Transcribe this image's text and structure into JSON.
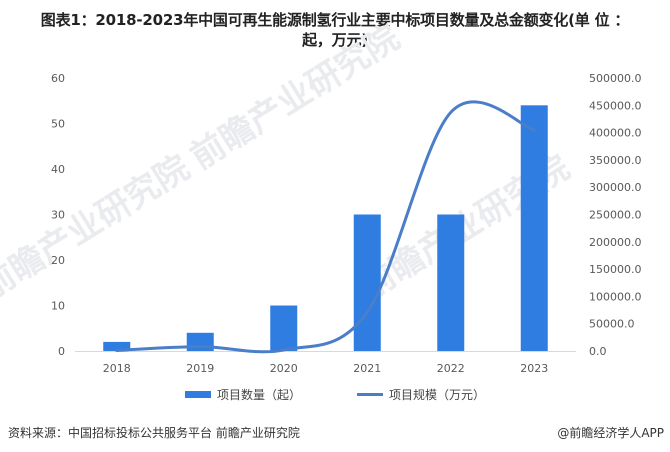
{
  "title": {
    "line1": "图表1：2018-2023年中国可再生能源制氢行业主要中标项目数量及总金额变化(单 位 ：",
    "line2": "起，万元)"
  },
  "colors": {
    "bar": "#2f7de1",
    "line": "#4a7ec9",
    "axis": "#d9d9d9"
  },
  "legend": {
    "bar_label": "项目数量（起）",
    "line_label": "项目规模（万元）"
  },
  "watermarks": [
    "前瞻产业研究院",
    "前瞻产业研究院",
    "前瞻产业研究院"
  ],
  "footer": {
    "source": "资料来源：中国招标投标公共服务平台 前瞻产业研究院",
    "brand": "@前瞻经济学人APP"
  },
  "chart_data": {
    "type": "bar+line",
    "title": "图表1：2018-2023年中国可再生能源制氢行业主要中标项目数量及总金额变化(单位：起，万元)",
    "categories": [
      "2018",
      "2019",
      "2020",
      "2021",
      "2022",
      "2023"
    ],
    "series": [
      {
        "name": "项目数量（起）",
        "type": "bar",
        "axis": "left",
        "values": [
          2,
          4,
          10,
          30,
          30,
          54
        ]
      },
      {
        "name": "项目规模（万元）",
        "type": "line",
        "axis": "right",
        "smooth": true,
        "values": [
          1000,
          8000,
          2000,
          71000,
          437000,
          405000
        ]
      }
    ],
    "left_axis": {
      "ylim": [
        0,
        60
      ],
      "ticks": [
        "0",
        "10",
        "20",
        "30",
        "40",
        "50",
        "60"
      ]
    },
    "right_axis": {
      "ylim": [
        0,
        500000
      ],
      "ticks": [
        "0.0",
        "50000.0",
        "100000.0",
        "150000.0",
        "200000.0",
        "250000.0",
        "300000.0",
        "350000.0",
        "400000.0",
        "450000.0",
        "500000.0"
      ]
    },
    "xlabel": "",
    "ylabel": "",
    "grid": false,
    "legend_position": "bottom"
  }
}
